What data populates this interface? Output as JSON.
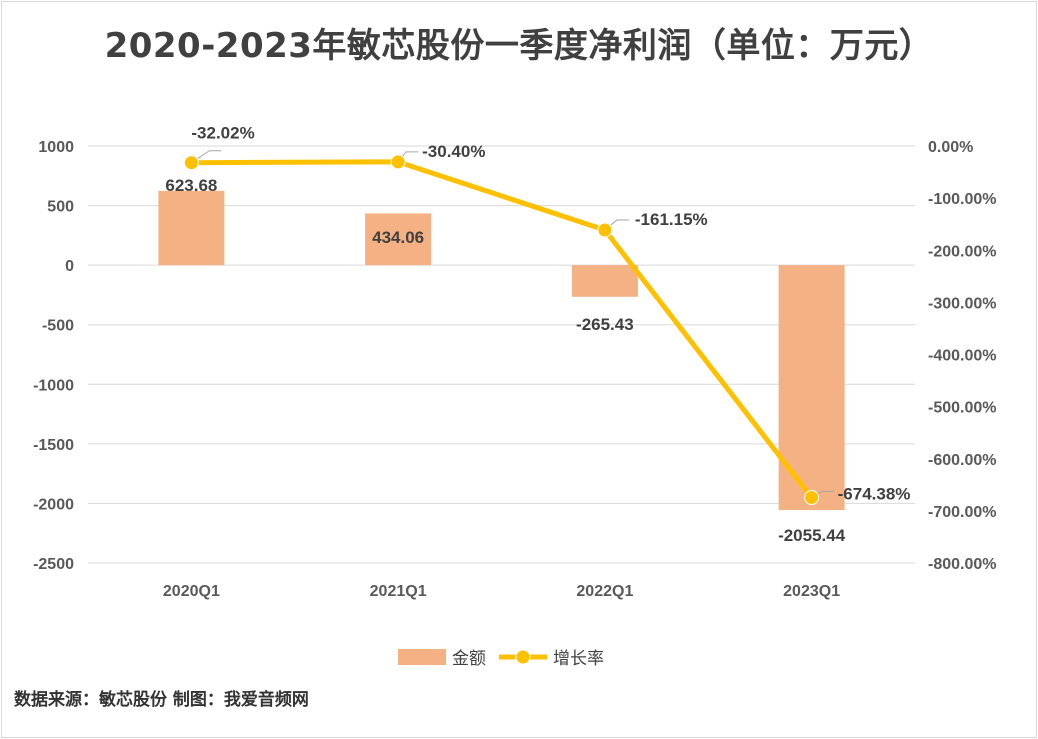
{
  "chart_data": {
    "type": "bar+line",
    "title": "2020-2023年敏芯股份一季度净利润（单位：万元）",
    "categories": [
      "2020Q1",
      "2021Q1",
      "2022Q1",
      "2023Q1"
    ],
    "series": [
      {
        "name": "金额",
        "type": "bar",
        "axis": "left",
        "color": "#F4B183",
        "values": [
          623.68,
          434.06,
          -265.43,
          -2055.44
        ],
        "labels": [
          "623.68",
          "434.06",
          "-265.43",
          "-2055.44"
        ]
      },
      {
        "name": "增长率",
        "type": "line",
        "axis": "right",
        "color": "#FFC000",
        "values": [
          -32.02,
          -30.4,
          -161.15,
          -674.38
        ],
        "labels": [
          "-32.02%",
          "-30.40%",
          "-161.15%",
          "-674.38%"
        ]
      }
    ],
    "left_axis": {
      "ylim": [
        -2500,
        1000
      ],
      "ticks": [
        "1000",
        "500",
        "0",
        "-500",
        "-1000",
        "-1500",
        "-2000",
        "-2500"
      ]
    },
    "right_axis": {
      "ylim": [
        -800,
        0
      ],
      "ticks": [
        "0.00%",
        "-100.00%",
        "-200.00%",
        "-300.00%",
        "-400.00%",
        "-500.00%",
        "-600.00%",
        "-700.00%",
        "-800.00%"
      ]
    },
    "grid": true,
    "legend_position": "bottom"
  },
  "source": "数据来源：敏芯股份 制图：我爱音频网"
}
